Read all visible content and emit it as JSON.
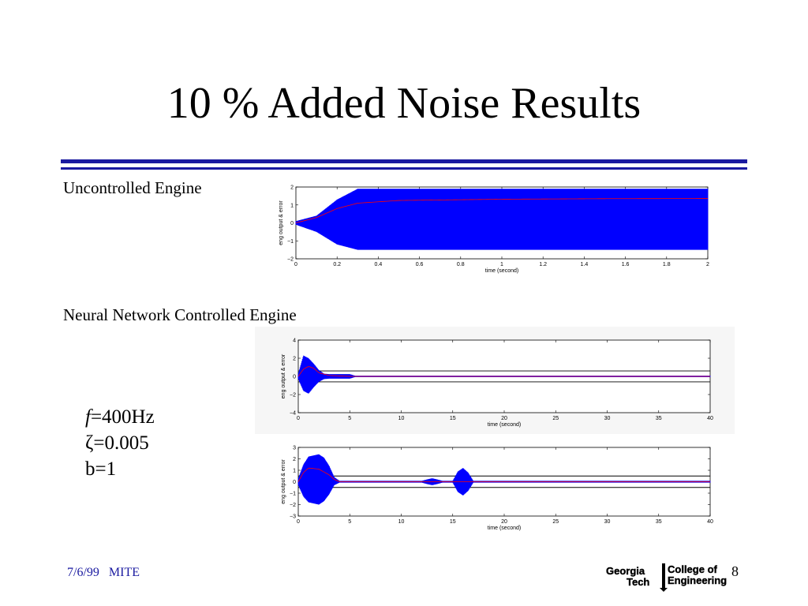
{
  "slide": {
    "title": "10 % Added Noise Results",
    "label_uncontrolled": "Uncontrolled Engine",
    "label_nn": "Neural Network Controlled Engine",
    "params": {
      "f_symbol": "f",
      "f_value": "=400Hz",
      "zeta": "ζ=0.005",
      "b": "b=1"
    },
    "footer": {
      "date": "7/6/99",
      "org": "MITE"
    },
    "page_number": "8",
    "logo": {
      "left_top": "Georgia",
      "left_bottom": "Tech",
      "right_top": "College of",
      "right_bottom": "Engineering"
    }
  },
  "colors": {
    "rule": "#1a1aa0",
    "signal": "#0000ff",
    "error": "#ff0000",
    "footer_text": "#1a1aa0"
  },
  "chart_data": [
    {
      "type": "line",
      "xlabel": "time (second)",
      "ylabel": "eng output & error",
      "xlim": [
        0,
        2
      ],
      "ylim": [
        -2,
        2
      ],
      "xticks": [
        "0",
        "0.2",
        "0.4",
        "0.6",
        "0.8",
        "1",
        "1.2",
        "1.4",
        "1.6",
        "1.8",
        "2"
      ],
      "yticks": [
        "2",
        "1",
        "0",
        "−1",
        "−2"
      ],
      "xtick_values": [
        0,
        0.2,
        0.4,
        0.6,
        0.8,
        1,
        1.2,
        1.4,
        1.6,
        1.8,
        2
      ],
      "ytick_values": [
        2,
        1,
        0,
        -1,
        -2
      ],
      "series": [
        {
          "kind": "oscillation_envelope",
          "x": [
            0,
            0.1,
            0.2,
            0.3,
            0.5,
            1,
            1.5,
            2
          ],
          "upper": [
            0.1,
            0.4,
            1.3,
            1.9,
            1.9,
            1.9,
            1.9,
            1.9
          ],
          "lower": [
            -0.1,
            -0.5,
            -1.2,
            -1.5,
            -1.5,
            -1.5,
            -1.5,
            -1.5
          ]
        },
        {
          "kind": "error_line",
          "x": [
            0,
            0.1,
            0.2,
            0.3,
            0.5,
            1,
            1.5,
            2
          ],
          "y": [
            0,
            0.3,
            0.8,
            1.1,
            1.25,
            1.32,
            1.35,
            1.36
          ]
        }
      ]
    },
    {
      "type": "line",
      "xlabel": "time (second)",
      "ylabel": "eng output & error",
      "xlim": [
        0,
        40
      ],
      "ylim": [
        -4,
        4
      ],
      "xticks": [
        "0",
        "5",
        "10",
        "15",
        "20",
        "25",
        "30",
        "35",
        "40"
      ],
      "yticks": [
        "4",
        "2",
        "0",
        "−2",
        "−4"
      ],
      "xtick_values": [
        0,
        5,
        10,
        15,
        20,
        25,
        30,
        35,
        40
      ],
      "ytick_values": [
        4,
        2,
        0,
        -2,
        -4
      ],
      "reference_lines": [
        0.6,
        -0.6
      ],
      "series": [
        {
          "kind": "oscillation_envelope",
          "x": [
            0,
            0.5,
            1,
            1.5,
            2,
            2.5,
            3,
            4,
            5,
            5.5,
            6,
            40
          ],
          "upper": [
            0.3,
            2.3,
            2.0,
            1.4,
            0.7,
            0.3,
            0.25,
            0.25,
            0.25,
            0.08,
            0.08,
            0.08
          ],
          "lower": [
            -0.3,
            -1.6,
            -1.9,
            -1.2,
            -0.6,
            -0.3,
            -0.25,
            -0.25,
            -0.25,
            -0.08,
            -0.08,
            -0.08
          ]
        },
        {
          "kind": "error_line",
          "x": [
            0,
            0.5,
            1,
            1.5,
            2,
            3,
            5,
            40
          ],
          "y": [
            0,
            0.8,
            1.1,
            0.9,
            0.4,
            0.1,
            0,
            0
          ]
        }
      ]
    },
    {
      "type": "line",
      "xlabel": "time (second)",
      "ylabel": "eng output & error",
      "xlim": [
        0,
        40
      ],
      "ylim": [
        -3,
        3
      ],
      "xticks": [
        "0",
        "5",
        "10",
        "15",
        "20",
        "25",
        "30",
        "35",
        "40"
      ],
      "yticks": [
        "3",
        "2",
        "1",
        "0",
        "−1",
        "−2",
        "−3"
      ],
      "xtick_values": [
        0,
        5,
        10,
        15,
        20,
        25,
        30,
        35,
        40
      ],
      "ytick_values": [
        3,
        2,
        1,
        0,
        -1,
        -2,
        -3
      ],
      "reference_lines": [
        0.5,
        -0.5
      ],
      "series": [
        {
          "kind": "oscillation_envelope",
          "x": [
            0,
            0.5,
            1,
            2,
            2.5,
            3,
            3.5,
            4,
            12,
            12.5,
            13,
            13.5,
            14,
            15,
            15.5,
            16,
            16.5,
            17,
            40
          ],
          "upper": [
            0.3,
            1.5,
            2.2,
            2.4,
            2.1,
            1.4,
            0.4,
            0.08,
            0.08,
            0.2,
            0.3,
            0.2,
            0.08,
            0.08,
            0.9,
            1.2,
            0.8,
            0.08,
            0.08
          ],
          "lower": [
            -0.3,
            -1.3,
            -1.8,
            -2.0,
            -1.7,
            -1.1,
            -0.3,
            -0.08,
            -0.08,
            -0.2,
            -0.3,
            -0.2,
            -0.08,
            -0.08,
            -0.9,
            -1.2,
            -0.8,
            -0.08,
            -0.08
          ]
        },
        {
          "kind": "error_line",
          "x": [
            0,
            0.5,
            1,
            2,
            3,
            3.5,
            4,
            40
          ],
          "y": [
            0,
            0.8,
            1.2,
            1.1,
            0.6,
            0.2,
            0,
            0
          ]
        }
      ]
    }
  ]
}
